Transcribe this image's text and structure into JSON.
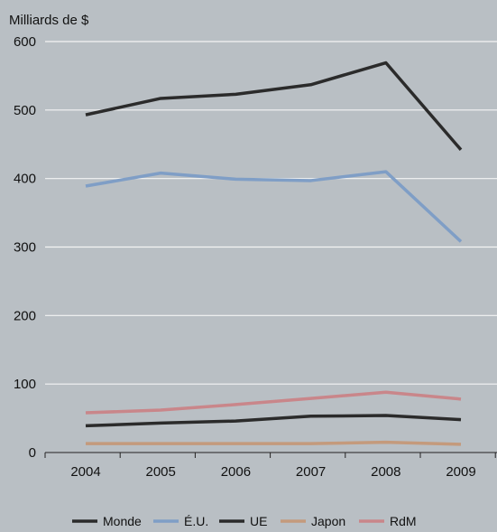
{
  "chart_data": {
    "type": "line",
    "ylabel": "Milliards de $",
    "categories": [
      "2004",
      "2005",
      "2006",
      "2007",
      "2008",
      "2009"
    ],
    "ylim": [
      0,
      600
    ],
    "yticks": [
      0,
      100,
      200,
      300,
      400,
      500,
      600
    ],
    "grid": true,
    "legend_position": "bottom",
    "series": [
      {
        "name": "Monde",
        "color": "#2b2b2b",
        "values": [
          493,
          517,
          523,
          537,
          569,
          442
        ]
      },
      {
        "name": "É.U.",
        "color": "#7f9ec6",
        "values": [
          389,
          408,
          399,
          397,
          410,
          308
        ]
      },
      {
        "name": "UE",
        "color": "#2b2b2b",
        "values": [
          39,
          43,
          46,
          53,
          54,
          48
        ]
      },
      {
        "name": "Japon",
        "color": "#c49a7c",
        "values": [
          13,
          13,
          13,
          13,
          15,
          12
        ]
      },
      {
        "name": "RdM",
        "color": "#c9868a",
        "values": [
          58,
          62,
          70,
          79,
          88,
          78
        ]
      }
    ]
  }
}
